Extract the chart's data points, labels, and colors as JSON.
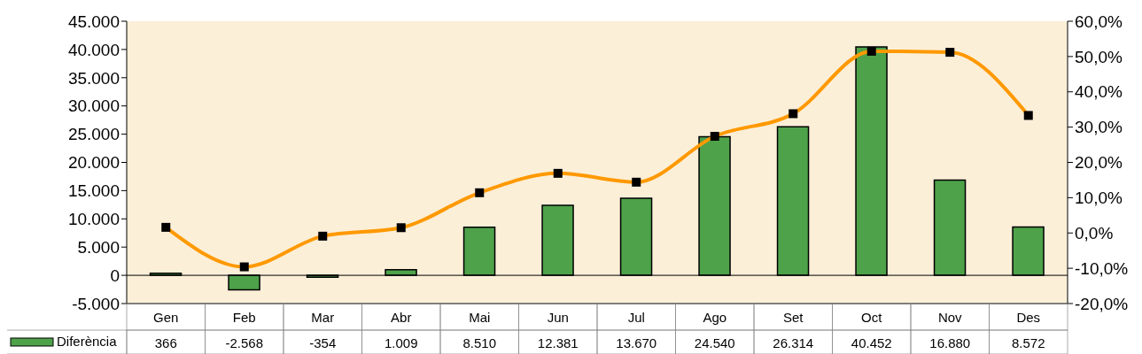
{
  "chart_data": {
    "type": "bar",
    "categories": [
      "Gen",
      "Feb",
      "Mar",
      "Abr",
      "Mai",
      "Jun",
      "Jul",
      "Ago",
      "Set",
      "Oct",
      "Nov",
      "Des"
    ],
    "series": [
      {
        "name": "Diferència",
        "color": "#4ea24a",
        "values": [
          366,
          -2568,
          -354,
          1009,
          8510,
          12381,
          13670,
          24540,
          26314,
          40452,
          16880,
          8572
        ],
        "value_labels": [
          "366",
          "-2.568",
          "-354",
          "1.009",
          "8.510",
          "12.381",
          "13.670",
          "24.540",
          "26.314",
          "40.452",
          "16.880",
          "8.572"
        ]
      },
      {
        "type": "line",
        "axis": "y2",
        "color": "#ff9900",
        "marker": "square",
        "values": [
          1.6,
          -9.6,
          -0.9,
          1.5,
          11.4,
          16.9,
          14.4,
          27.4,
          33.8,
          51.5,
          51.2,
          33.3
        ]
      }
    ],
    "ylim": [
      -5000,
      45000
    ],
    "yticks": [
      {
        "value": -5000,
        "label": "-5.000"
      },
      0,
      {
        "value": 5000,
        "label": "5.000"
      },
      {
        "value": 10000,
        "label": "10.000"
      },
      {
        "value": 15000,
        "label": "15.000"
      },
      {
        "value": 20000,
        "label": "20.000"
      },
      {
        "value": 25000,
        "label": "25.000"
      },
      {
        "value": 30000,
        "label": "30.000"
      },
      {
        "value": 35000,
        "label": "35.000"
      },
      {
        "value": 40000,
        "label": "40.000"
      },
      {
        "value": 45000,
        "label": "45.000"
      }
    ],
    "y2lim": [
      -20,
      60
    ],
    "y2ticks": [
      {
        "value": -20,
        "label": "-20,0%"
      },
      {
        "value": -10,
        "label": "-10,0%"
      },
      {
        "value": 0,
        "label": "0,0%"
      },
      {
        "value": 10,
        "label": "10,0%"
      },
      {
        "value": 20,
        "label": "20,0%"
      },
      {
        "value": 30,
        "label": "30,0%"
      },
      {
        "value": 40,
        "label": "40,0%"
      },
      {
        "value": 50,
        "label": "50,0%"
      },
      {
        "value": 60,
        "label": "60,0%"
      }
    ],
    "grid": false,
    "ref_lines": [
      {
        "axis": "y",
        "value": 0,
        "color": "#000000"
      }
    ],
    "legend": "bottom left"
  }
}
